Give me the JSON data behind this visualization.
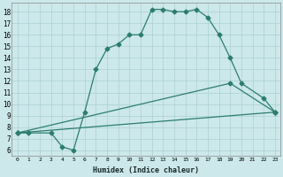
{
  "xlabel": "Humidex (Indice chaleur)",
  "ylabel": "",
  "xlim": [
    -0.5,
    23.5
  ],
  "ylim": [
    5.5,
    18.8
  ],
  "xticks": [
    0,
    1,
    2,
    3,
    4,
    5,
    6,
    7,
    8,
    9,
    10,
    11,
    12,
    13,
    14,
    15,
    16,
    17,
    18,
    19,
    20,
    21,
    22,
    23
  ],
  "yticks": [
    6,
    7,
    8,
    9,
    10,
    11,
    12,
    13,
    14,
    15,
    16,
    17,
    18
  ],
  "bg_color": "#cce8ea",
  "line_color": "#2d7d6e",
  "grid_color": "#aacfd4",
  "lines": [
    {
      "x": [
        0,
        1,
        3,
        4,
        5,
        6,
        7,
        8,
        9,
        10,
        11,
        12,
        13,
        14,
        15,
        16,
        17,
        18,
        19,
        20,
        22,
        23
      ],
      "y": [
        7.5,
        7.5,
        7.5,
        6.3,
        6.0,
        9.3,
        13.0,
        14.8,
        15.2,
        16.0,
        16.0,
        18.2,
        18.2,
        18.0,
        18.0,
        18.2,
        17.5,
        16.0,
        14.0,
        11.8,
        10.5,
        9.3
      ]
    },
    {
      "x": [
        0,
        19,
        23
      ],
      "y": [
        7.5,
        11.8,
        9.3
      ]
    },
    {
      "x": [
        0,
        23
      ],
      "y": [
        7.5,
        9.3
      ]
    }
  ]
}
